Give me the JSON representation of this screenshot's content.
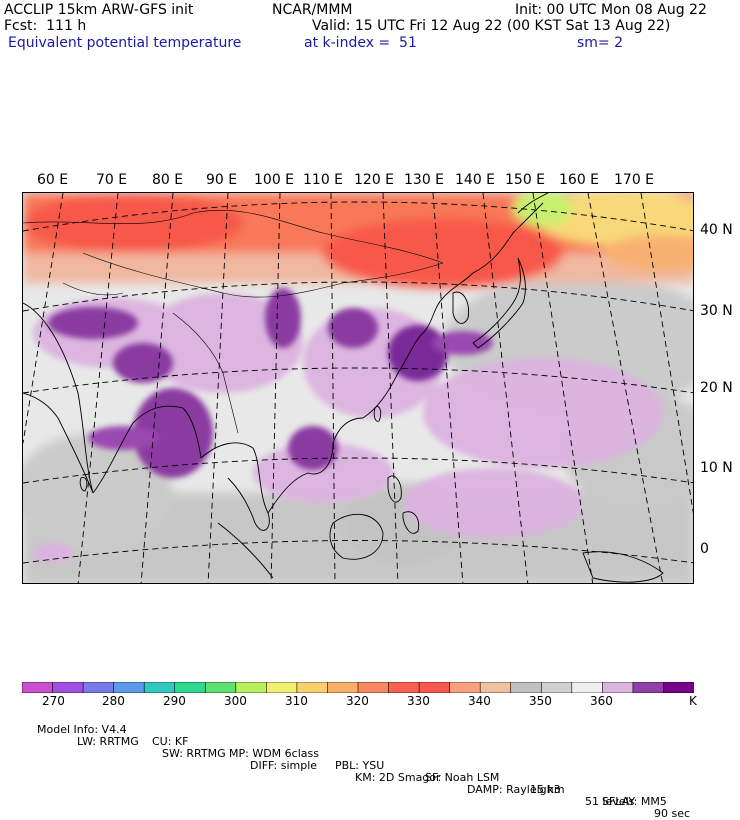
{
  "header": {
    "line1_left": "ACCLIP 15km ARW-GFS init",
    "line1_center": "NCAR/MMM",
    "line1_right": "Init: 00 UTC Mon 08 Aug 22",
    "line2_left": "Fcst:  111 h",
    "line2_right": "Valid: 15 UTC Fri 12 Aug 22 (00 KST Sat 13 Aug 22)",
    "line3_left": "Equivalent potential temperature",
    "line3_center": "at k-index =  51",
    "line3_right": "sm= 2"
  },
  "axes": {
    "lon_labels": [
      "60 E",
      "70 E",
      "80 E",
      "90 E",
      "100 E",
      "110 E",
      "120 E",
      "130 E",
      "140 E",
      "150 E",
      "160 E",
      "170 E"
    ],
    "lat_labels": [
      "40 N",
      "30 N",
      "20 N",
      "10 N",
      "0"
    ]
  },
  "colorbar": {
    "colors": [
      "#c84fd0",
      "#a050e0",
      "#7a7ae8",
      "#5a9ae8",
      "#30c8c0",
      "#30d890",
      "#60e070",
      "#b8f060",
      "#f0f070",
      "#f8d070",
      "#f8b068",
      "#f88860",
      "#f86050",
      "#f85850",
      "#f8a080",
      "#f0c0a0",
      "#c0c0c0",
      "#d0d0d0",
      "#f0f0f0",
      "#dcb4e0",
      "#9040a8",
      "#780088"
    ],
    "tick_labels": [
      "270",
      "280",
      "290",
      "300",
      "310",
      "320",
      "330",
      "340",
      "350",
      "360"
    ],
    "unit": "K"
  },
  "model_info": {
    "line1": [
      "Model Info: V4.4",
      "CU: KF",
      "MP: WDM 6class",
      "PBL: YSU",
      "SF: Noah LSM",
      "15 km",
      "51 levels",
      "90 sec"
    ],
    "line2": [
      "LW: RRTMG",
      "SW: RRTMG",
      "DIFF: simple",
      "KM: 2D Smagor",
      "DAMP: Rayleigh3",
      "SFLAY: MM5"
    ]
  }
}
